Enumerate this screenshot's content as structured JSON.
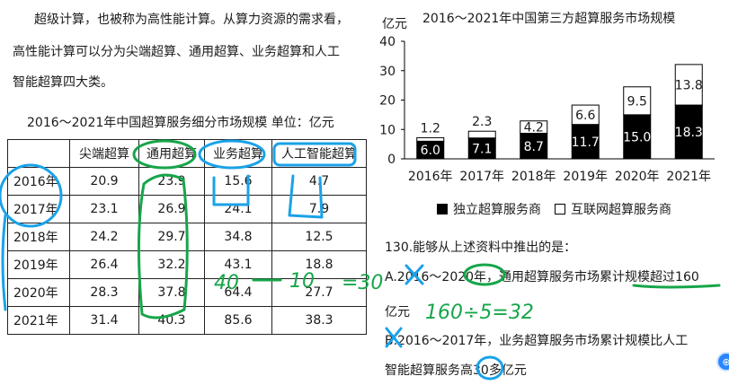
{
  "intro": {
    "line1": "超级计算，也被称为高性能计算。从算力资源的需求看，",
    "line2": "高性能计算可以分为尖端超算、通用超算、业务超算和人工",
    "line3": "智能超算四大类。"
  },
  "table": {
    "title": "2016～2021年中国超算服务细分市场规模    单位：亿元",
    "headers": [
      "",
      "尖端超算",
      "通用超算",
      "业务超算",
      "人工智能超算"
    ],
    "rows": [
      [
        "2016年",
        "20.9",
        "23.9",
        "15.6",
        "4.7"
      ],
      [
        "2017年",
        "23.1",
        "26.9",
        "24.1",
        "7.9"
      ],
      [
        "2018年",
        "24.2",
        "29.7",
        "34.8",
        "12.5"
      ],
      [
        "2019年",
        "26.4",
        "32.2",
        "43.1",
        "18.8"
      ],
      [
        "2020年",
        "28.3",
        "37.8",
        "64.4",
        "27.7"
      ],
      [
        "2021年",
        "31.4",
        "40.3",
        "85.6",
        "38.3"
      ]
    ]
  },
  "chart_data": {
    "type": "bar",
    "title": "2016～2021年中国第三方超算服务市场规模",
    "ylabel": "亿元",
    "categories": [
      "2016年",
      "2017年",
      "2018年",
      "2019年",
      "2020年",
      "2021年"
    ],
    "series": [
      {
        "name": "独立超算服务商",
        "values": [
          6.0,
          7.1,
          8.7,
          11.7,
          15.0,
          18.3
        ],
        "color": "#000000"
      },
      {
        "name": "互联网超算服务商",
        "values": [
          1.2,
          2.3,
          4.2,
          6.6,
          9.5,
          13.8
        ],
        "color": "#ffffff"
      }
    ],
    "value_labels": [
      [
        "6.0",
        "7.1",
        "8.7",
        "11.7",
        "15.0",
        "18.3"
      ],
      [
        "1.2",
        "2.3",
        "4.2",
        "6.6",
        "9.5",
        "13.8"
      ]
    ],
    "stacked": true,
    "ylim": [
      0,
      40
    ],
    "yticks": [
      "0",
      "10",
      "20",
      "30",
      "40"
    ],
    "grid": false,
    "legend_position": "bottom"
  },
  "question": {
    "stem": "130.能够从上述资料中推出的是：",
    "optA_line1": "A.2016～2020年，通用超算服务市场累计规模超过160",
    "optA_line2": "亿元",
    "optB_line1": "B.2016～2017年，业务超算服务市场累计规模比人工",
    "optB_line2": "智能超算服务高30多亿元"
  },
  "annotations": {
    "calc1": "40",
    "calc2": "10",
    "calc3": "=30",
    "calc4": "160÷5=32"
  },
  "colors": {
    "ink_green": "#17a54a",
    "ink_blue": "#1aa2e8"
  },
  "ui": {
    "zoom_icon": "zoom-icon",
    "zoom_glyph": "⊕"
  }
}
